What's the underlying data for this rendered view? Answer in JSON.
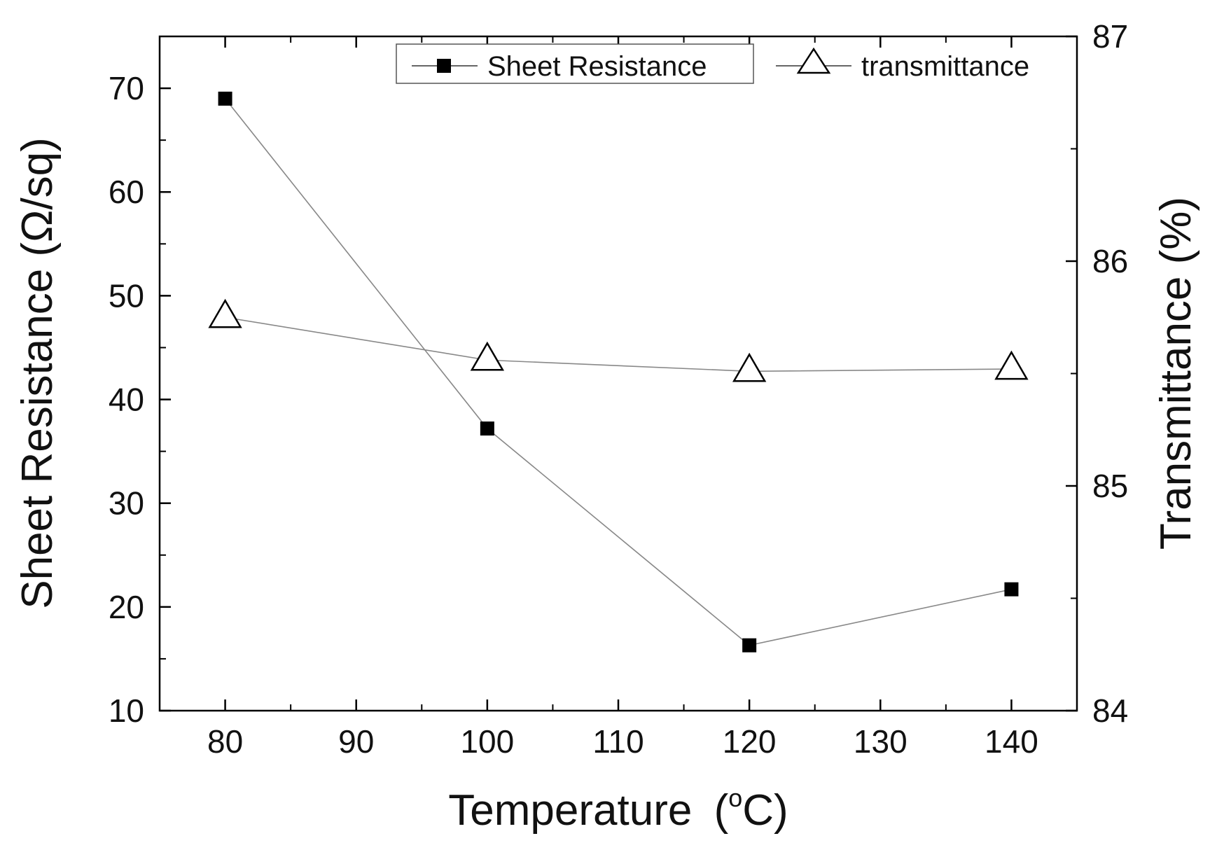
{
  "chart_data": {
    "type": "line",
    "x": [
      80,
      100,
      120,
      140
    ],
    "xlabel": "Temperature",
    "xlabel_unit_open": "(",
    "xlabel_unit_degree": "o",
    "xlabel_unit_close": "C)",
    "ylabel": "Sheet Resistance (Ω/sq)",
    "y2label": "Transmittance (%)",
    "xlim": [
      75,
      145
    ],
    "ylim": [
      10,
      75
    ],
    "y2lim": [
      84,
      87
    ],
    "xticks": [
      80,
      90,
      100,
      110,
      120,
      130,
      140
    ],
    "yticks": [
      10,
      20,
      30,
      40,
      50,
      60,
      70
    ],
    "y2ticks": [
      84,
      85,
      86,
      87
    ],
    "grid": false,
    "legend_position": "top-right",
    "series": [
      {
        "name": "Sheet Resistance",
        "axis": "left",
        "marker": "filled-square",
        "values": [
          69,
          37.2,
          16.3,
          21.7
        ]
      },
      {
        "name": "transmittance",
        "axis": "right",
        "marker": "open-triangle",
        "values": [
          85.75,
          85.56,
          85.51,
          85.52
        ]
      }
    ],
    "colors": {
      "line": "#888888",
      "marker": "#000000",
      "axis": "#000000"
    }
  }
}
